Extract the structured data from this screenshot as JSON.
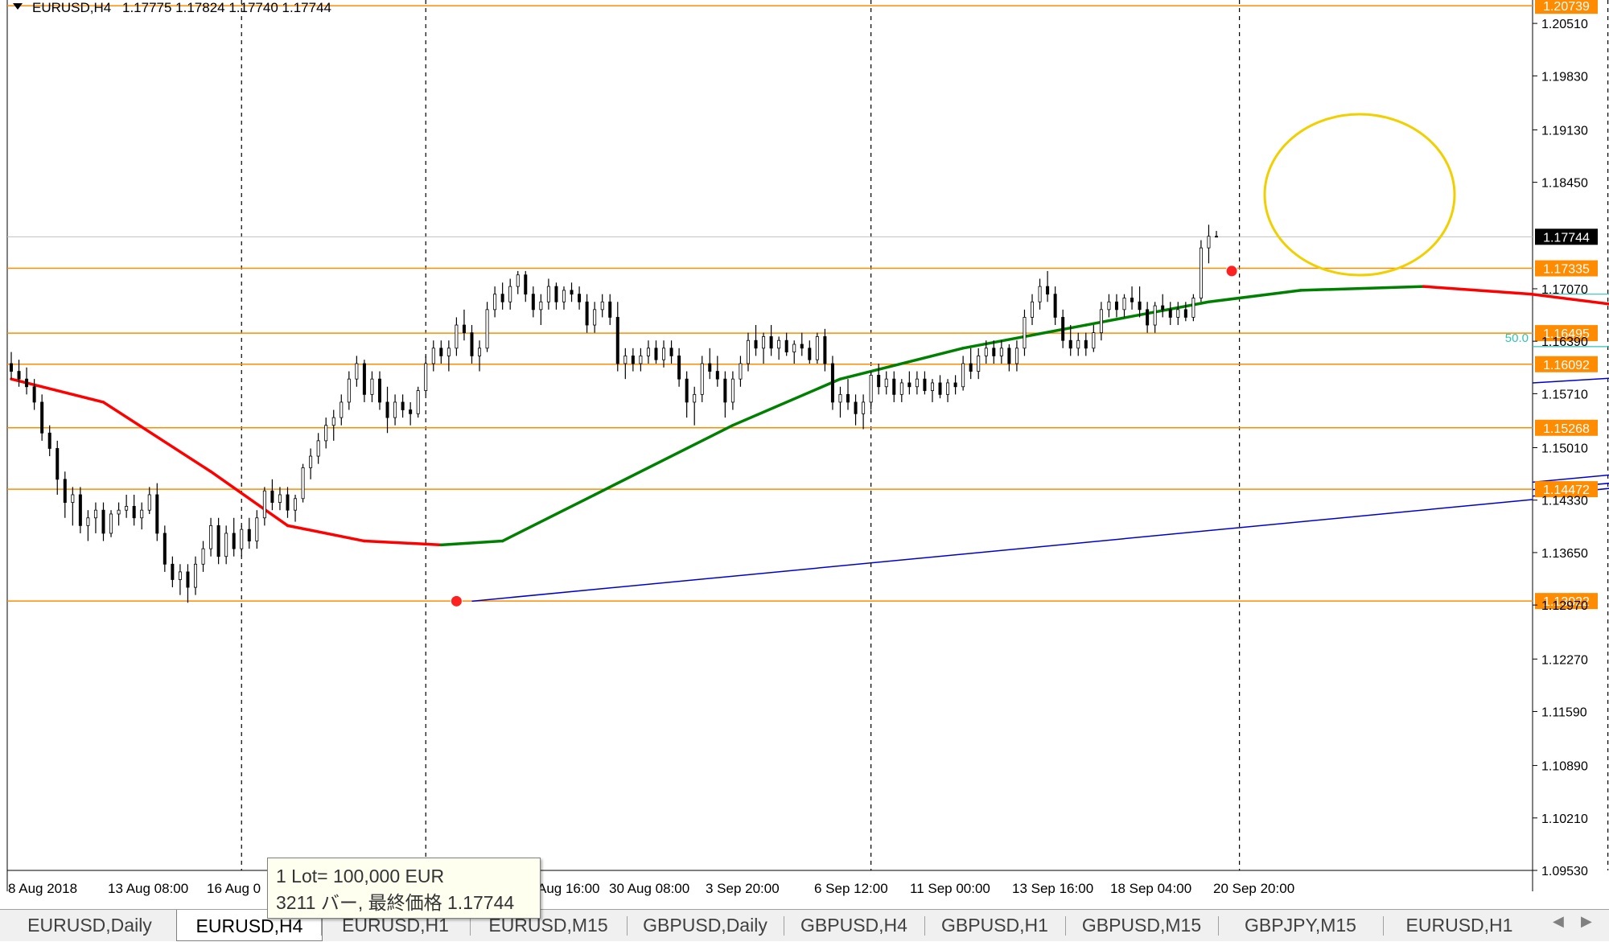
{
  "header": {
    "symbol_label": "EURUSD,H4",
    "ohlc": "1.17775 1.17824 1.17740 1.17744"
  },
  "colors": {
    "background": "#ffffff",
    "candle": "#000000",
    "hline": "#ff8c00",
    "trendline": "#0000cd",
    "ma_up": "#008000",
    "ma_down": "#ff0000",
    "ma_flat": "#e6c800",
    "circle": "#f0d000",
    "fib": "#2ec4b6",
    "price_box": "#ff8c00",
    "current_box": "#000000"
  },
  "chart_data": {
    "type": "candlestick",
    "symbol": "EURUSD",
    "timeframe": "H4",
    "ylim": [
      1.0953,
      1.2073
    ],
    "y_ticks": [
      "1.20510",
      "1.19830",
      "1.19130",
      "1.18450",
      "1.17070",
      "1.16390",
      "1.15710",
      "1.15010",
      "1.14330",
      "1.13650",
      "1.12970",
      "1.12270",
      "1.11590",
      "1.10890",
      "1.10210",
      "1.09530"
    ],
    "x_ticks": [
      "8 Aug 2018",
      "13 Aug 08:00",
      "16 Aug 0",
      "Aug 16:00",
      "30 Aug 08:00",
      "3 Sep 20:00",
      "6 Sep 12:00",
      "11 Sep 00:00",
      "13 Sep 16:00",
      "18 Sep 04:00",
      "20 Sep 20:00"
    ],
    "current_price": 1.17744,
    "current_price_label": "1.17744",
    "horizontal_levels": [
      {
        "value": 1.20739,
        "label": "1.20739"
      },
      {
        "value": 1.17335,
        "label": "1.17335"
      },
      {
        "value": 1.16495,
        "label": "1.16495"
      },
      {
        "value": 1.16092,
        "label": "1.16092"
      },
      {
        "value": 1.15268,
        "label": "1.15268"
      },
      {
        "value": 1.14472,
        "label": "1.14472"
      },
      {
        "value": 1.13022,
        "label": "1.13022"
      }
    ],
    "fib_label": "50.0",
    "candles": [
      [
        1.161,
        1.1625,
        1.159,
        1.16
      ],
      [
        1.16,
        1.1615,
        1.158,
        1.159
      ],
      [
        1.159,
        1.1605,
        1.157,
        1.158
      ],
      [
        1.158,
        1.159,
        1.155,
        1.156
      ],
      [
        1.156,
        1.157,
        1.151,
        1.152
      ],
      [
        1.152,
        1.153,
        1.149,
        1.15
      ],
      [
        1.15,
        1.151,
        1.144,
        1.146
      ],
      [
        1.146,
        1.147,
        1.141,
        1.143
      ],
      [
        1.143,
        1.145,
        1.14,
        1.144
      ],
      [
        1.144,
        1.145,
        1.139,
        1.14
      ],
      [
        1.14,
        1.142,
        1.138,
        1.141
      ],
      [
        1.141,
        1.143,
        1.139,
        1.142
      ],
      [
        1.142,
        1.143,
        1.138,
        1.139
      ],
      [
        1.139,
        1.142,
        1.1385,
        1.1415
      ],
      [
        1.1415,
        1.143,
        1.14,
        1.142
      ],
      [
        1.142,
        1.144,
        1.141,
        1.1425
      ],
      [
        1.1425,
        1.144,
        1.14,
        1.141
      ],
      [
        1.141,
        1.143,
        1.1395,
        1.142
      ],
      [
        1.142,
        1.145,
        1.1415,
        1.144
      ],
      [
        1.144,
        1.1455,
        1.138,
        1.139
      ],
      [
        1.139,
        1.14,
        1.134,
        1.135
      ],
      [
        1.135,
        1.136,
        1.132,
        1.133
      ],
      [
        1.133,
        1.135,
        1.131,
        1.134
      ],
      [
        1.134,
        1.135,
        1.13,
        1.132
      ],
      [
        1.132,
        1.136,
        1.131,
        1.135
      ],
      [
        1.135,
        1.138,
        1.134,
        1.137
      ],
      [
        1.137,
        1.141,
        1.136,
        1.14
      ],
      [
        1.14,
        1.141,
        1.135,
        1.136
      ],
      [
        1.136,
        1.14,
        1.135,
        1.139
      ],
      [
        1.139,
        1.141,
        1.136,
        1.137
      ],
      [
        1.137,
        1.14,
        1.136,
        1.1395
      ],
      [
        1.1395,
        1.141,
        1.137,
        1.138
      ],
      [
        1.138,
        1.142,
        1.137,
        1.141
      ],
      [
        1.141,
        1.145,
        1.14,
        1.1445
      ],
      [
        1.1445,
        1.146,
        1.142,
        1.143
      ],
      [
        1.143,
        1.145,
        1.142,
        1.144
      ],
      [
        1.144,
        1.145,
        1.141,
        1.142
      ],
      [
        1.142,
        1.144,
        1.1405,
        1.1435
      ],
      [
        1.1435,
        1.148,
        1.143,
        1.1475
      ],
      [
        1.1475,
        1.15,
        1.146,
        1.149
      ],
      [
        1.149,
        1.152,
        1.148,
        1.151
      ],
      [
        1.151,
        1.154,
        1.15,
        1.153
      ],
      [
        1.153,
        1.155,
        1.151,
        1.154
      ],
      [
        1.154,
        1.157,
        1.153,
        1.156
      ],
      [
        1.156,
        1.16,
        1.155,
        1.159
      ],
      [
        1.159,
        1.162,
        1.158,
        1.161
      ],
      [
        1.161,
        1.1615,
        1.156,
        1.157
      ],
      [
        1.157,
        1.16,
        1.156,
        1.159
      ],
      [
        1.159,
        1.16,
        1.155,
        1.156
      ],
      [
        1.156,
        1.158,
        1.152,
        1.154
      ],
      [
        1.154,
        1.157,
        1.153,
        1.156
      ],
      [
        1.156,
        1.157,
        1.154,
        1.155
      ],
      [
        1.155,
        1.156,
        1.153,
        1.1545
      ],
      [
        1.1545,
        1.158,
        1.154,
        1.1575
      ],
      [
        1.1575,
        1.162,
        1.157,
        1.161
      ],
      [
        1.161,
        1.164,
        1.16,
        1.163
      ],
      [
        1.163,
        1.164,
        1.161,
        1.162
      ],
      [
        1.162,
        1.164,
        1.16,
        1.163
      ],
      [
        1.163,
        1.167,
        1.162,
        1.166
      ],
      [
        1.166,
        1.168,
        1.164,
        1.165
      ],
      [
        1.165,
        1.166,
        1.161,
        1.162
      ],
      [
        1.162,
        1.164,
        1.16,
        1.163
      ],
      [
        1.163,
        1.169,
        1.1625,
        1.168
      ],
      [
        1.168,
        1.171,
        1.167,
        1.17
      ],
      [
        1.17,
        1.1715,
        1.168,
        1.169
      ],
      [
        1.169,
        1.172,
        1.168,
        1.171
      ],
      [
        1.171,
        1.173,
        1.17,
        1.1725
      ],
      [
        1.1725,
        1.173,
        1.169,
        1.17
      ],
      [
        1.17,
        1.171,
        1.167,
        1.168
      ],
      [
        1.168,
        1.17,
        1.166,
        1.169
      ],
      [
        1.169,
        1.172,
        1.168,
        1.171
      ],
      [
        1.171,
        1.1715,
        1.168,
        1.169
      ],
      [
        1.169,
        1.171,
        1.168,
        1.1705
      ],
      [
        1.1705,
        1.1715,
        1.169,
        1.17
      ],
      [
        1.17,
        1.171,
        1.168,
        1.169
      ],
      [
        1.169,
        1.17,
        1.165,
        1.166
      ],
      [
        1.166,
        1.169,
        1.165,
        1.168
      ],
      [
        1.168,
        1.17,
        1.167,
        1.169
      ],
      [
        1.169,
        1.17,
        1.166,
        1.167
      ],
      [
        1.167,
        1.169,
        1.16,
        1.161
      ],
      [
        1.161,
        1.163,
        1.159,
        1.162
      ],
      [
        1.162,
        1.163,
        1.16,
        1.161
      ],
      [
        1.161,
        1.163,
        1.16,
        1.162
      ],
      [
        1.162,
        1.164,
        1.161,
        1.163
      ],
      [
        1.163,
        1.164,
        1.161,
        1.1615
      ],
      [
        1.1615,
        1.164,
        1.1605,
        1.163
      ],
      [
        1.163,
        1.164,
        1.161,
        1.162
      ],
      [
        1.162,
        1.163,
        1.158,
        1.159
      ],
      [
        1.159,
        1.16,
        1.154,
        1.156
      ],
      [
        1.156,
        1.158,
        1.153,
        1.157
      ],
      [
        1.157,
        1.162,
        1.156,
        1.161
      ],
      [
        1.161,
        1.163,
        1.159,
        1.16
      ],
      [
        1.16,
        1.162,
        1.158,
        1.159
      ],
      [
        1.159,
        1.16,
        1.154,
        1.156
      ],
      [
        1.156,
        1.16,
        1.155,
        1.159
      ],
      [
        1.159,
        1.162,
        1.158,
        1.161
      ],
      [
        1.161,
        1.165,
        1.16,
        1.164
      ],
      [
        1.164,
        1.166,
        1.162,
        1.163
      ],
      [
        1.163,
        1.165,
        1.161,
        1.1645
      ],
      [
        1.1645,
        1.166,
        1.162,
        1.163
      ],
      [
        1.163,
        1.1645,
        1.1615,
        1.164
      ],
      [
        1.164,
        1.165,
        1.162,
        1.1625
      ],
      [
        1.1625,
        1.164,
        1.161,
        1.1635
      ],
      [
        1.1635,
        1.165,
        1.162,
        1.163
      ],
      [
        1.163,
        1.164,
        1.161,
        1.1615
      ],
      [
        1.1615,
        1.165,
        1.161,
        1.1645
      ],
      [
        1.1645,
        1.1655,
        1.16,
        1.161
      ],
      [
        1.161,
        1.162,
        1.155,
        1.156
      ],
      [
        1.156,
        1.158,
        1.154,
        1.157
      ],
      [
        1.157,
        1.159,
        1.155,
        1.156
      ],
      [
        1.156,
        1.157,
        1.153,
        1.1545
      ],
      [
        1.1545,
        1.157,
        1.1525,
        1.156
      ],
      [
        1.156,
        1.16,
        1.155,
        1.1595
      ],
      [
        1.1595,
        1.161,
        1.157,
        1.158
      ],
      [
        1.158,
        1.16,
        1.157,
        1.159
      ],
      [
        1.159,
        1.16,
        1.156,
        1.157
      ],
      [
        1.157,
        1.159,
        1.156,
        1.1585
      ],
      [
        1.1585,
        1.16,
        1.157,
        1.158
      ],
      [
        1.158,
        1.16,
        1.157,
        1.159
      ],
      [
        1.159,
        1.16,
        1.157,
        1.1575
      ],
      [
        1.1575,
        1.159,
        1.156,
        1.1585
      ],
      [
        1.1585,
        1.1595,
        1.1565,
        1.157
      ],
      [
        1.157,
        1.159,
        1.156,
        1.1585
      ],
      [
        1.1585,
        1.1595,
        1.157,
        1.158
      ],
      [
        1.158,
        1.162,
        1.1575,
        1.161
      ],
      [
        1.161,
        1.163,
        1.159,
        1.16
      ],
      [
        1.16,
        1.163,
        1.159,
        1.162
      ],
      [
        1.162,
        1.164,
        1.161,
        1.163
      ],
      [
        1.163,
        1.164,
        1.161,
        1.162
      ],
      [
        1.162,
        1.164,
        1.161,
        1.163
      ],
      [
        1.163,
        1.1635,
        1.16,
        1.161
      ],
      [
        1.161,
        1.164,
        1.16,
        1.163
      ],
      [
        1.163,
        1.168,
        1.162,
        1.167
      ],
      [
        1.167,
        1.17,
        1.166,
        1.169
      ],
      [
        1.169,
        1.172,
        1.168,
        1.171
      ],
      [
        1.171,
        1.173,
        1.169,
        1.17
      ],
      [
        1.17,
        1.171,
        1.166,
        1.167
      ],
      [
        1.167,
        1.168,
        1.163,
        1.164
      ],
      [
        1.164,
        1.166,
        1.162,
        1.163
      ],
      [
        1.163,
        1.165,
        1.162,
        1.164
      ],
      [
        1.164,
        1.165,
        1.162,
        1.163
      ],
      [
        1.163,
        1.166,
        1.1625,
        1.165
      ],
      [
        1.165,
        1.169,
        1.164,
        1.168
      ],
      [
        1.168,
        1.17,
        1.167,
        1.169
      ],
      [
        1.169,
        1.17,
        1.167,
        1.168
      ],
      [
        1.168,
        1.17,
        1.167,
        1.1695
      ],
      [
        1.1695,
        1.171,
        1.168,
        1.169
      ],
      [
        1.169,
        1.171,
        1.167,
        1.168
      ],
      [
        1.168,
        1.169,
        1.165,
        1.166
      ],
      [
        1.166,
        1.169,
        1.165,
        1.1685
      ],
      [
        1.1685,
        1.17,
        1.167,
        1.168
      ],
      [
        1.168,
        1.169,
        1.166,
        1.167
      ],
      [
        1.167,
        1.169,
        1.166,
        1.168
      ],
      [
        1.168,
        1.169,
        1.1665,
        1.167
      ],
      [
        1.167,
        1.17,
        1.1665,
        1.1695
      ],
      [
        1.1695,
        1.177,
        1.169,
        1.176
      ],
      [
        1.176,
        1.179,
        1.174,
        1.1775
      ],
      [
        1.1775,
        1.1782,
        1.1774,
        1.1774
      ]
    ],
    "moving_average": [
      [
        0,
        1.159
      ],
      [
        12,
        1.156
      ],
      [
        26,
        1.147
      ],
      [
        36,
        1.14
      ],
      [
        46,
        1.138
      ],
      [
        56,
        1.1375
      ],
      [
        64,
        1.138
      ],
      [
        76,
        1.144
      ],
      [
        94,
        1.153
      ],
      [
        108,
        1.159
      ],
      [
        124,
        1.163
      ],
      [
        140,
        1.166
      ],
      [
        156,
        1.169
      ],
      [
        168,
        1.1705
      ],
      [
        184,
        1.171
      ],
      [
        198,
        1.17
      ],
      [
        214,
        1.168
      ],
      [
        228,
        1.1655
      ],
      [
        244,
        1.163
      ],
      [
        258,
        1.1625
      ],
      [
        276,
        1.1625
      ],
      [
        290,
        1.162
      ],
      [
        304,
        1.161
      ],
      [
        318,
        1.1605
      ],
      [
        332,
        1.16
      ],
      [
        348,
        1.1595
      ],
      [
        362,
        1.159
      ],
      [
        378,
        1.16
      ],
      [
        392,
        1.162
      ],
      [
        408,
        1.164
      ],
      [
        424,
        1.1655
      ],
      [
        440,
        1.1665
      ],
      [
        456,
        1.168
      ],
      [
        470,
        1.168
      ],
      [
        486,
        1.1695
      ],
      [
        498,
        1.1705
      ]
    ],
    "ellipse_center": [
      1.1855
    ],
    "xlabel": "",
    "ylabel": ""
  },
  "tabs": [
    {
      "label": "EURUSD,Daily",
      "active": false
    },
    {
      "label": "EURUSD,H4",
      "active": true
    },
    {
      "label": "EURUSD,H1",
      "active": false
    },
    {
      "label": "EURUSD,M15",
      "active": false
    },
    {
      "label": "GBPUSD,Daily",
      "active": false
    },
    {
      "label": "GBPUSD,H4",
      "active": false
    },
    {
      "label": "GBPUSD,H1",
      "active": false
    },
    {
      "label": "GBPUSD,M15",
      "active": false
    },
    {
      "label": "GBPJPY,M15",
      "active": false
    },
    {
      "label": "EURUSD,H1",
      "active": false
    }
  ],
  "tooltip": {
    "line1": "1 Lot= 100,000 EUR",
    "line2": "3211 バー, 最終価格 1.17744"
  }
}
